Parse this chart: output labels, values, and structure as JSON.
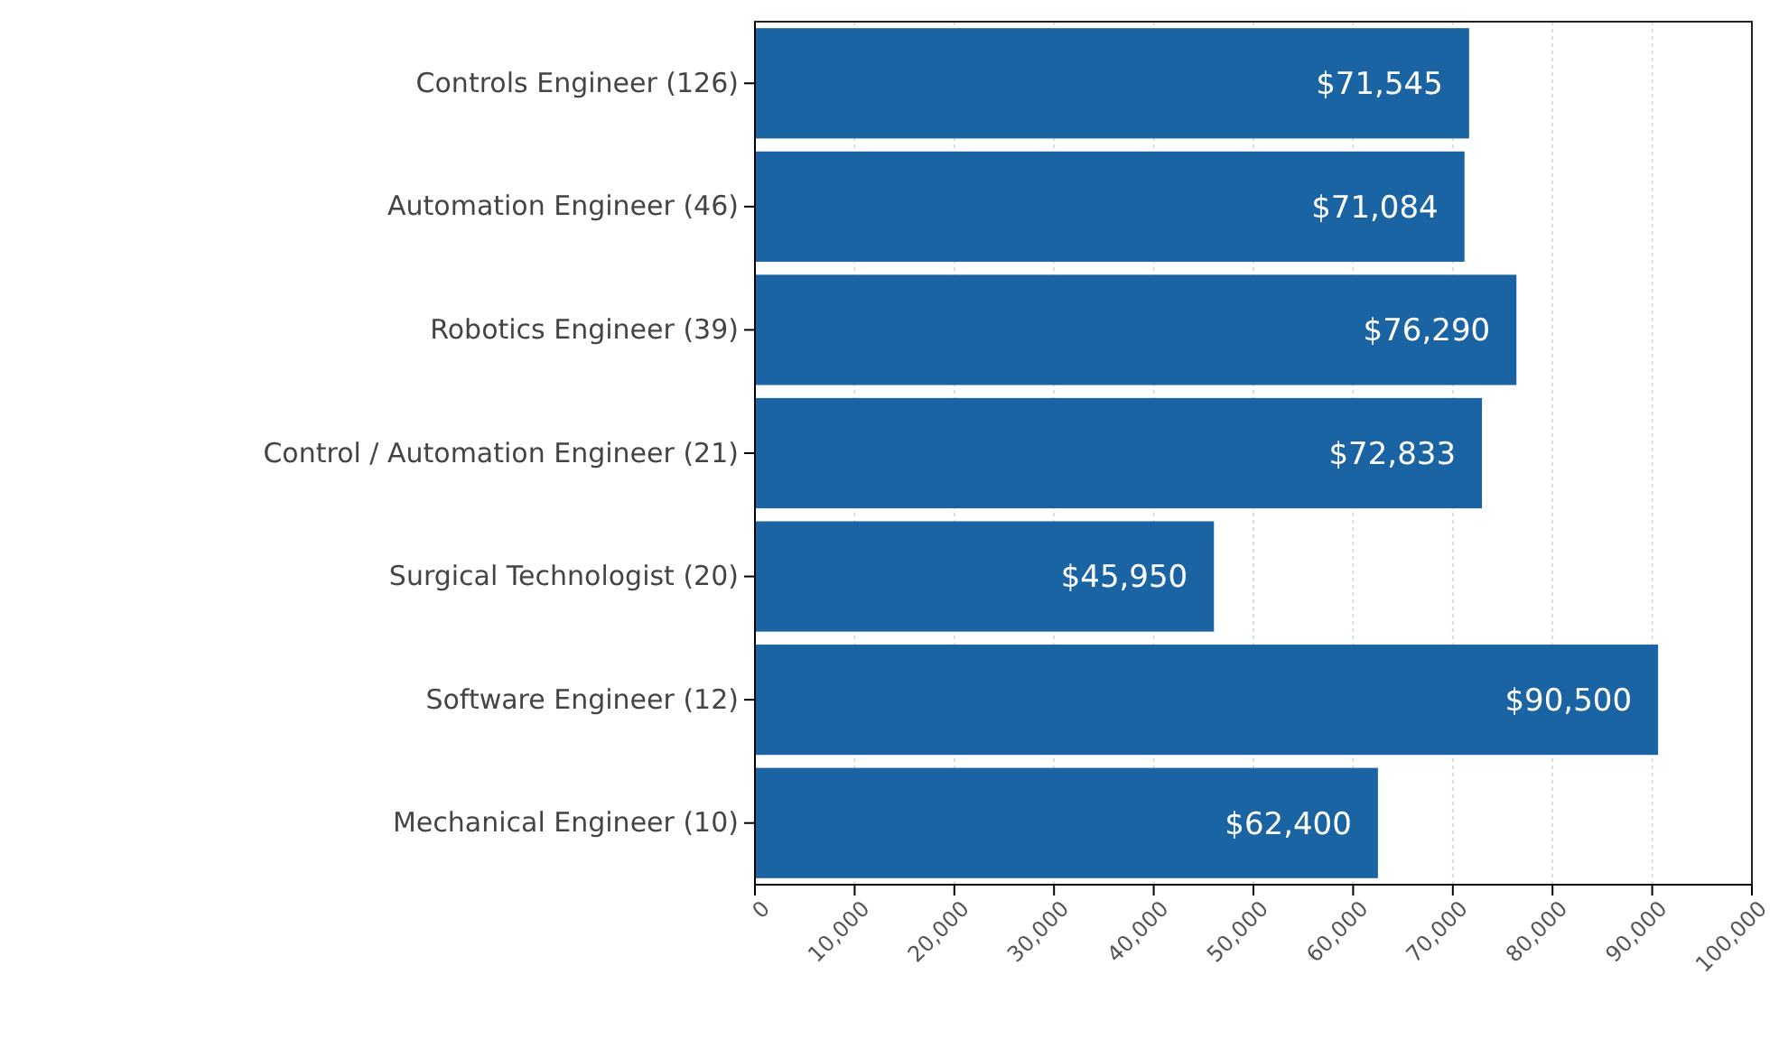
{
  "chart_data": {
    "type": "bar",
    "orientation": "horizontal",
    "categories": [
      "Controls Engineer (126)",
      "Automation Engineer (46)",
      "Robotics Engineer (39)",
      "Control / Automation Engineer (21)",
      "Surgical Technologist (20)",
      "Software Engineer (12)",
      "Mechanical Engineer (10)"
    ],
    "values": [
      71545,
      71084,
      76290,
      72833,
      45950,
      90500,
      62400
    ],
    "value_labels": [
      "$71,545",
      "$71,084",
      "$76,290",
      "$72,833",
      "$45,950",
      "$90,500",
      "$62,400"
    ],
    "color": "#1b64a3",
    "xlim": [
      0,
      100000
    ],
    "xticks": [
      0,
      {
        "value": 10000,
        "label": "10,000"
      },
      {
        "value": 20000,
        "label": "20,000"
      },
      {
        "value": 30000,
        "label": "30,000"
      },
      {
        "value": 40000,
        "label": "40,000"
      },
      {
        "value": 50000,
        "label": "50,000"
      },
      {
        "value": 60000,
        "label": "60,000"
      },
      {
        "value": 70000,
        "label": "70,000"
      },
      {
        "value": 80000,
        "label": "80,000"
      },
      {
        "value": 90000,
        "label": "90,000"
      },
      {
        "value": 100000,
        "label": "100,000"
      }
    ],
    "grid": "x"
  }
}
